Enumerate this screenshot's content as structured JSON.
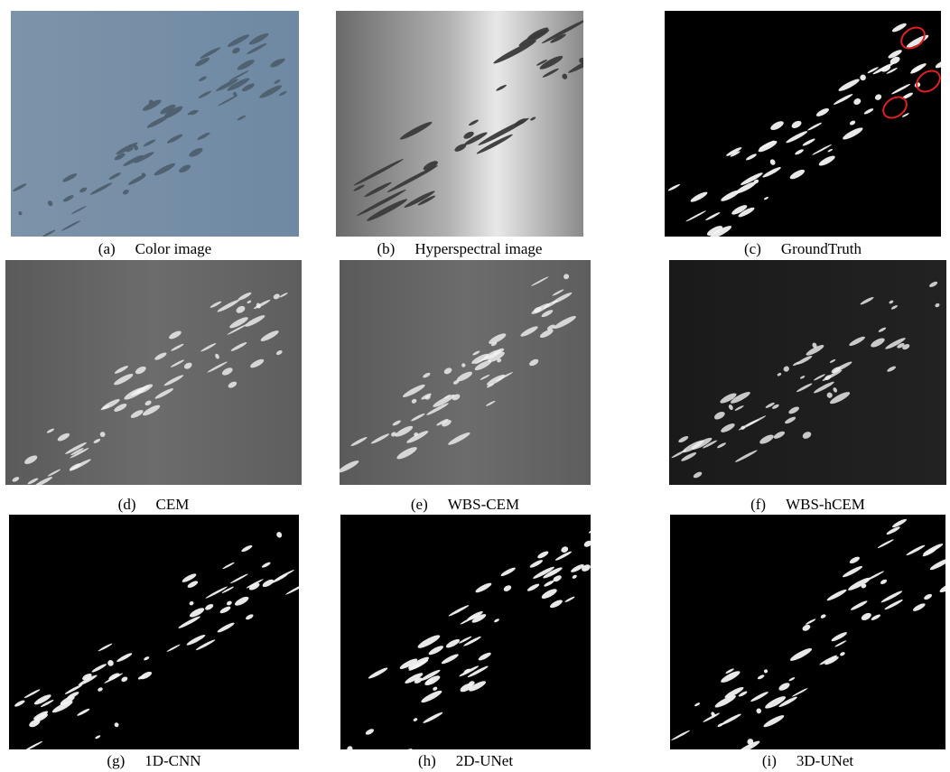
{
  "figure": {
    "panels": [
      {
        "label": "(a)",
        "caption": "Color image"
      },
      {
        "label": "(b)",
        "caption": "Hyperspectral image"
      },
      {
        "label": "(c)",
        "caption": "GroundTruth"
      },
      {
        "label": "(d)",
        "caption": "CEM"
      },
      {
        "label": "(e)",
        "caption": "WBS-CEM"
      },
      {
        "label": "(f)",
        "caption": "WBS-hCEM"
      },
      {
        "label": "(g)",
        "caption": "1D-CNN"
      },
      {
        "label": "(h)",
        "caption": "2D-UNet"
      },
      {
        "label": "(i)",
        "caption": "3D-UNet"
      }
    ]
  }
}
